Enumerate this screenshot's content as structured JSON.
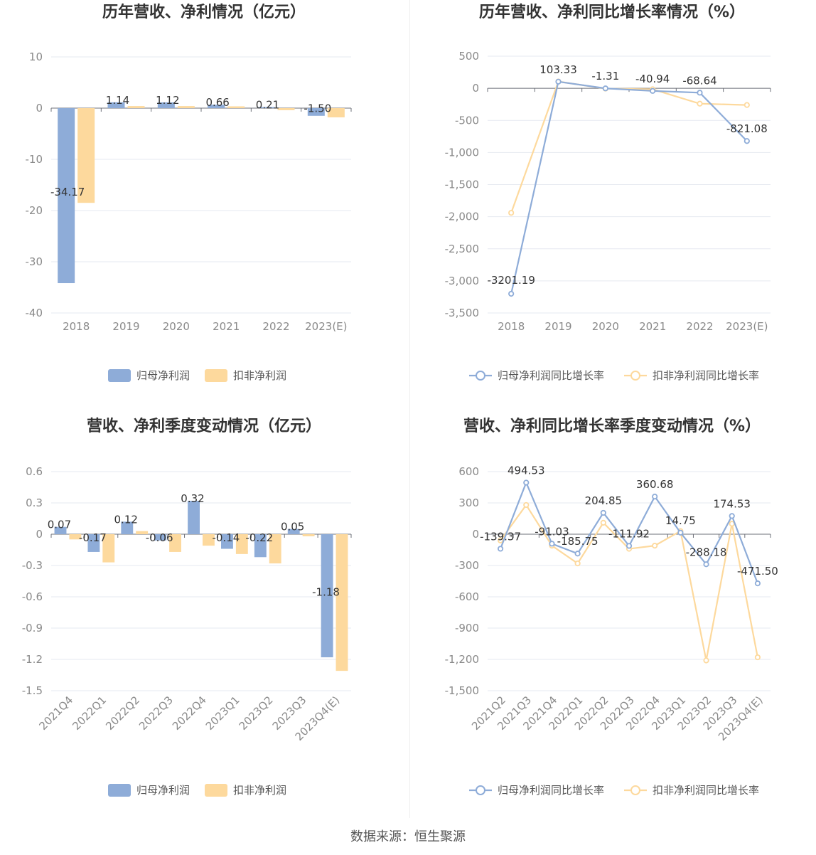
{
  "source": "数据来源：恒生聚源",
  "colors": {
    "blue": "#8eacd8",
    "yellow": "#fdd99d",
    "grid": "#e6e9f0",
    "axis": "#6e7079"
  },
  "chart_data": [
    {
      "type": "bar",
      "title": "历年营收、净利情况（亿元）",
      "categories": [
        "2018",
        "2019",
        "2020",
        "2021",
        "2022",
        "2023(E)"
      ],
      "series": [
        {
          "name": "归母净利润",
          "color": "#8eacd8",
          "values": [
            -34.17,
            1.14,
            1.12,
            0.66,
            0.21,
            -1.5
          ]
        },
        {
          "name": "扣非净利润",
          "color": "#fdd99d",
          "values": [
            -18.5,
            0.4,
            0.4,
            0.35,
            -0.4,
            -1.8
          ]
        }
      ],
      "labels": [
        "-34.17",
        "1.14",
        "1.12",
        "0.66",
        "0.21",
        "-1.50"
      ],
      "ylim": [
        -40,
        10
      ],
      "yticks": [
        10,
        0,
        -10,
        -20,
        -30,
        -40
      ],
      "yticklabels": [
        "10",
        "0",
        "-10",
        "-20",
        "-30",
        "-40"
      ]
    },
    {
      "type": "line",
      "title": "历年营收、净利同比增长率情况（%）",
      "categories": [
        "2018",
        "2019",
        "2020",
        "2021",
        "2022",
        "2023(E)"
      ],
      "series": [
        {
          "name": "归母净利润同比增长率",
          "color": "#8eacd8",
          "values": [
            -3201.19,
            103.33,
            -1.31,
            -40.94,
            -68.64,
            -821.08
          ]
        },
        {
          "name": "扣非净利润同比增长率",
          "color": "#fdd99d",
          "values": [
            -1940,
            105,
            -5,
            -15,
            -240,
            -260
          ]
        }
      ],
      "labels": [
        "-3201.19",
        "103.33",
        "-1.31",
        "-40.94",
        "-68.64",
        "-821.08"
      ],
      "ylim": [
        -3500,
        500
      ],
      "yticks": [
        500,
        0,
        -500,
        -1000,
        -1500,
        -2000,
        -2500,
        -3000,
        -3500
      ],
      "yticklabels": [
        "500",
        "0",
        "-500",
        "-1,000",
        "-1,500",
        "-2,000",
        "-2,500",
        "-3,000",
        "-3,500"
      ]
    },
    {
      "type": "bar",
      "title": "营收、净利季度变动情况（亿元）",
      "categories": [
        "2021Q4",
        "2022Q1",
        "2022Q2",
        "2022Q3",
        "2022Q4",
        "2023Q1",
        "2023Q2",
        "2023Q3",
        "2023Q4(E)"
      ],
      "series": [
        {
          "name": "归母净利润",
          "color": "#8eacd8",
          "values": [
            0.07,
            -0.17,
            0.12,
            -0.06,
            0.32,
            -0.14,
            -0.22,
            0.05,
            -1.18
          ]
        },
        {
          "name": "扣非净利润",
          "color": "#fdd99d",
          "values": [
            -0.05,
            -0.27,
            0.03,
            -0.17,
            -0.11,
            -0.19,
            -0.28,
            -0.02,
            -1.31
          ]
        }
      ],
      "labels": [
        "0.07",
        "-0.17",
        "0.12",
        "-0.06",
        "0.32",
        "-0.14",
        "-0.22",
        "0.05",
        "-1.18"
      ],
      "ylim": [
        -1.5,
        0.6
      ],
      "yticks": [
        0.6,
        0.3,
        0,
        -0.3,
        -0.6,
        -0.9,
        -1.2,
        -1.5
      ],
      "yticklabels": [
        "0.6",
        "0.3",
        "0",
        "-0.3",
        "-0.6",
        "-0.9",
        "-1.2",
        "-1.5"
      ]
    },
    {
      "type": "line",
      "title": "营收、净利同比增长率季度变动情况（%）",
      "categories": [
        "2021Q2",
        "2021Q3",
        "2021Q4",
        "2022Q1",
        "2022Q2",
        "2022Q3",
        "2022Q4",
        "2023Q1",
        "2023Q2",
        "2023Q3",
        "2023Q4(E)"
      ],
      "series": [
        {
          "name": "归母净利润同比增长率",
          "color": "#8eacd8",
          "values": [
            -139.37,
            494.53,
            -91.03,
            -185.75,
            204.85,
            -111.92,
            360.68,
            14.75,
            -288.18,
            174.53,
            -471.5
          ]
        },
        {
          "name": "扣非净利润同比增长率",
          "color": "#fdd99d",
          "values": [
            -60,
            280,
            -110,
            -280,
            110,
            -140,
            -110,
            30,
            -1210,
            100,
            -1180
          ]
        }
      ],
      "labels": [
        "-139.37",
        "494.53",
        "-91.03",
        "-185.75",
        "204.85",
        "-111.92",
        "360.68",
        "14.75",
        "-288.18",
        "174.53",
        "-471.50"
      ],
      "ylim": [
        -1500,
        600
      ],
      "yticks": [
        600,
        300,
        0,
        -300,
        -600,
        -900,
        -1200,
        -1500
      ],
      "yticklabels": [
        "600",
        "300",
        "0",
        "-300",
        "-600",
        "-900",
        "-1,200",
        "-1,500"
      ]
    }
  ]
}
